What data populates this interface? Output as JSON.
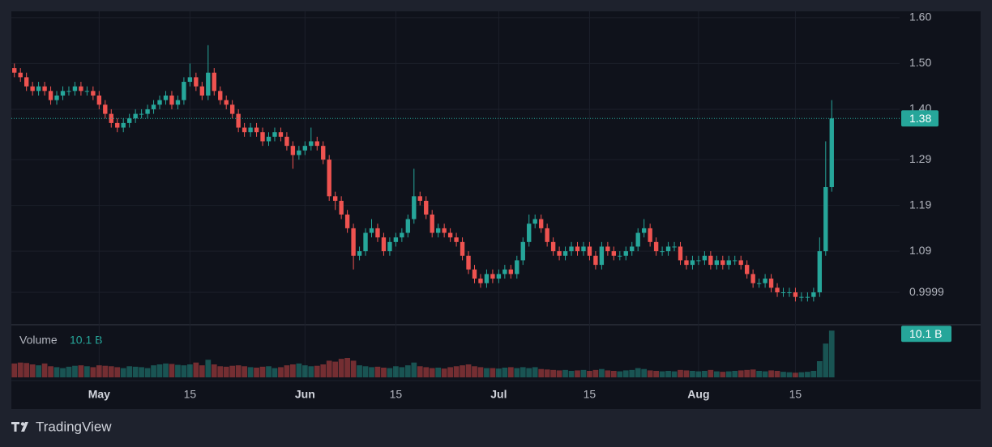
{
  "chart_data": {
    "type": "candlestick",
    "up_color": "#26a69a",
    "down_color": "#ef5350",
    "open": [
      1.49,
      1.48,
      1.47,
      1.45,
      1.44,
      1.45,
      1.44,
      1.42,
      1.43,
      1.44,
      1.44,
      1.45,
      1.44,
      1.44,
      1.43,
      1.41,
      1.39,
      1.37,
      1.36,
      1.37,
      1.38,
      1.39,
      1.39,
      1.4,
      1.41,
      1.42,
      1.43,
      1.41,
      1.42,
      1.46,
      1.47,
      1.45,
      1.43,
      1.48,
      1.44,
      1.42,
      1.41,
      1.39,
      1.36,
      1.35,
      1.36,
      1.35,
      1.33,
      1.34,
      1.35,
      1.34,
      1.32,
      1.3,
      1.31,
      1.32,
      1.33,
      1.32,
      1.29,
      1.21,
      1.2,
      1.17,
      1.14,
      1.08,
      1.09,
      1.13,
      1.14,
      1.12,
      1.09,
      1.11,
      1.12,
      1.13,
      1.16,
      1.21,
      1.2,
      1.17,
      1.13,
      1.14,
      1.13,
      1.12,
      1.11,
      1.08,
      1.05,
      1.03,
      1.02,
      1.04,
      1.03,
      1.04,
      1.05,
      1.04,
      1.07,
      1.11,
      1.15,
      1.16,
      1.14,
      1.11,
      1.09,
      1.08,
      1.09,
      1.1,
      1.09,
      1.1,
      1.08,
      1.06,
      1.1,
      1.09,
      1.08,
      1.08,
      1.09,
      1.1,
      1.13,
      1.14,
      1.11,
      1.09,
      1.09,
      1.1,
      1.1,
      1.07,
      1.06,
      1.07,
      1.07,
      1.08,
      1.06,
      1.07,
      1.06,
      1.07,
      1.07,
      1.06,
      1.04,
      1.02,
      1.02,
      1.03,
      1.01,
      1.0,
      1.0,
      1.0,
      0.99,
      0.99,
      0.99,
      1.0,
      1.09,
      1.23
    ],
    "high": [
      1.5,
      1.49,
      1.48,
      1.46,
      1.46,
      1.46,
      1.45,
      1.44,
      1.45,
      1.45,
      1.46,
      1.46,
      1.45,
      1.45,
      1.44,
      1.42,
      1.4,
      1.38,
      1.38,
      1.39,
      1.4,
      1.4,
      1.41,
      1.42,
      1.43,
      1.44,
      1.44,
      1.43,
      1.47,
      1.5,
      1.48,
      1.46,
      1.54,
      1.49,
      1.45,
      1.43,
      1.42,
      1.4,
      1.37,
      1.37,
      1.37,
      1.36,
      1.35,
      1.36,
      1.36,
      1.35,
      1.33,
      1.32,
      1.33,
      1.36,
      1.34,
      1.33,
      1.3,
      1.22,
      1.21,
      1.18,
      1.15,
      1.1,
      1.14,
      1.16,
      1.15,
      1.13,
      1.12,
      1.13,
      1.14,
      1.17,
      1.27,
      1.22,
      1.21,
      1.18,
      1.15,
      1.15,
      1.14,
      1.13,
      1.12,
      1.09,
      1.06,
      1.04,
      1.05,
      1.05,
      1.05,
      1.06,
      1.06,
      1.08,
      1.12,
      1.17,
      1.17,
      1.17,
      1.15,
      1.12,
      1.1,
      1.1,
      1.11,
      1.11,
      1.11,
      1.11,
      1.09,
      1.11,
      1.11,
      1.1,
      1.09,
      1.1,
      1.11,
      1.14,
      1.16,
      1.15,
      1.12,
      1.1,
      1.11,
      1.11,
      1.11,
      1.08,
      1.08,
      1.08,
      1.09,
      1.09,
      1.08,
      1.08,
      1.08,
      1.08,
      1.08,
      1.07,
      1.05,
      1.03,
      1.04,
      1.04,
      1.02,
      1.01,
      1.01,
      1.01,
      1.0,
      1.0,
      1.01,
      1.12,
      1.33,
      1.42
    ],
    "low": [
      1.47,
      1.46,
      1.44,
      1.43,
      1.43,
      1.43,
      1.41,
      1.41,
      1.42,
      1.43,
      1.43,
      1.43,
      1.43,
      1.42,
      1.4,
      1.38,
      1.36,
      1.35,
      1.35,
      1.36,
      1.37,
      1.38,
      1.38,
      1.39,
      1.4,
      1.41,
      1.4,
      1.4,
      1.41,
      1.45,
      1.44,
      1.42,
      1.42,
      1.43,
      1.41,
      1.4,
      1.38,
      1.35,
      1.34,
      1.34,
      1.34,
      1.32,
      1.32,
      1.33,
      1.33,
      1.31,
      1.27,
      1.29,
      1.3,
      1.31,
      1.31,
      1.28,
      1.2,
      1.18,
      1.16,
      1.13,
      1.05,
      1.07,
      1.08,
      1.12,
      1.11,
      1.08,
      1.08,
      1.1,
      1.11,
      1.12,
      1.15,
      1.19,
      1.16,
      1.12,
      1.12,
      1.12,
      1.11,
      1.1,
      1.07,
      1.04,
      1.02,
      1.01,
      1.01,
      1.02,
      1.02,
      1.03,
      1.03,
      1.03,
      1.06,
      1.1,
      1.14,
      1.13,
      1.1,
      1.08,
      1.07,
      1.07,
      1.08,
      1.08,
      1.08,
      1.07,
      1.05,
      1.05,
      1.08,
      1.07,
      1.07,
      1.07,
      1.08,
      1.09,
      1.12,
      1.1,
      1.08,
      1.08,
      1.08,
      1.09,
      1.06,
      1.05,
      1.05,
      1.06,
      1.06,
      1.05,
      1.05,
      1.05,
      1.05,
      1.06,
      1.05,
      1.03,
      1.01,
      1.01,
      1.01,
      1.0,
      0.99,
      0.99,
      0.99,
      0.98,
      0.98,
      0.98,
      0.98,
      0.99,
      1.08,
      1.22
    ],
    "close": [
      1.48,
      1.47,
      1.45,
      1.44,
      1.45,
      1.44,
      1.42,
      1.43,
      1.44,
      1.44,
      1.45,
      1.44,
      1.44,
      1.43,
      1.41,
      1.39,
      1.37,
      1.36,
      1.37,
      1.38,
      1.39,
      1.39,
      1.4,
      1.41,
      1.42,
      1.43,
      1.41,
      1.42,
      1.46,
      1.47,
      1.45,
      1.43,
      1.48,
      1.44,
      1.42,
      1.41,
      1.39,
      1.36,
      1.35,
      1.36,
      1.35,
      1.33,
      1.34,
      1.35,
      1.34,
      1.32,
      1.3,
      1.31,
      1.32,
      1.33,
      1.32,
      1.29,
      1.21,
      1.2,
      1.17,
      1.14,
      1.08,
      1.09,
      1.13,
      1.14,
      1.12,
      1.09,
      1.11,
      1.12,
      1.13,
      1.16,
      1.21,
      1.2,
      1.17,
      1.13,
      1.14,
      1.13,
      1.12,
      1.11,
      1.08,
      1.05,
      1.03,
      1.02,
      1.04,
      1.03,
      1.04,
      1.05,
      1.04,
      1.07,
      1.11,
      1.15,
      1.16,
      1.14,
      1.11,
      1.09,
      1.08,
      1.09,
      1.1,
      1.09,
      1.1,
      1.08,
      1.06,
      1.1,
      1.09,
      1.08,
      1.08,
      1.09,
      1.1,
      1.13,
      1.14,
      1.11,
      1.09,
      1.09,
      1.1,
      1.1,
      1.07,
      1.06,
      1.07,
      1.07,
      1.08,
      1.06,
      1.07,
      1.06,
      1.07,
      1.07,
      1.06,
      1.04,
      1.02,
      1.02,
      1.03,
      1.01,
      1.0,
      1.0,
      1.0,
      0.99,
      0.99,
      0.99,
      1.0,
      1.09,
      1.23,
      1.38
    ],
    "volume": {
      "name": "Volume",
      "label": "10.1 B",
      "lim": [
        0,
        11.2
      ],
      "values": [
        3.0,
        3.2,
        3.1,
        2.8,
        2.6,
        3.0,
        2.4,
        2.2,
        2.0,
        2.3,
        2.5,
        2.6,
        2.4,
        2.2,
        2.6,
        2.5,
        2.4,
        2.2,
        2.0,
        2.4,
        2.3,
        2.2,
        2.0,
        2.6,
        2.8,
        3.0,
        2.9,
        2.7,
        2.6,
        2.8,
        3.2,
        2.6,
        3.8,
        2.8,
        2.4,
        2.3,
        2.5,
        2.6,
        2.4,
        2.2,
        2.1,
        2.3,
        2.4,
        2.0,
        2.2,
        2.6,
        2.8,
        3.0,
        2.6,
        2.4,
        2.5,
        2.8,
        3.6,
        3.4,
        4.0,
        4.2,
        3.6,
        2.6,
        2.4,
        2.2,
        2.3,
        2.1,
        2.0,
        2.4,
        2.2,
        2.6,
        3.2,
        2.4,
        2.2,
        2.0,
        2.1,
        1.9,
        2.2,
        2.4,
        2.6,
        2.8,
        2.4,
        2.2,
        2.0,
        2.0,
        1.9,
        2.1,
        2.2,
        2.0,
        2.2,
        2.0,
        2.2,
        1.8,
        1.7,
        1.6,
        1.5,
        1.6,
        1.4,
        1.5,
        1.6,
        1.4,
        1.6,
        1.8,
        1.5,
        1.4,
        1.3,
        1.5,
        1.6,
        2.0,
        1.8,
        1.5,
        1.4,
        1.3,
        1.4,
        1.3,
        1.6,
        1.5,
        1.4,
        1.3,
        1.4,
        1.6,
        1.3,
        1.2,
        1.3,
        1.4,
        1.5,
        1.6,
        1.7,
        1.4,
        1.3,
        1.5,
        1.4,
        1.2,
        1.1,
        1.0,
        1.1,
        1.2,
        1.4,
        3.5,
        7.3,
        10.1
      ]
    },
    "ylim": [
      0.931,
      1.614
    ],
    "yticks": [
      {
        "value": 1.6,
        "label": "1.60"
      },
      {
        "value": 1.5,
        "label": "1.50"
      },
      {
        "value": 1.4,
        "label": "1.40"
      },
      1.29,
      1.19,
      1.09,
      0.9999
    ],
    "xticks": [
      {
        "value": 14,
        "label": "May"
      },
      {
        "value": 29,
        "label": "15"
      },
      {
        "value": 48,
        "label": "Jun"
      },
      {
        "value": 63,
        "label": "15"
      },
      {
        "value": 80,
        "label": "Jul"
      },
      {
        "value": 95,
        "label": "15"
      },
      {
        "value": 113,
        "label": "Aug"
      },
      {
        "value": 129,
        "label": "15"
      }
    ],
    "grid": true,
    "brand": "TradingView"
  }
}
